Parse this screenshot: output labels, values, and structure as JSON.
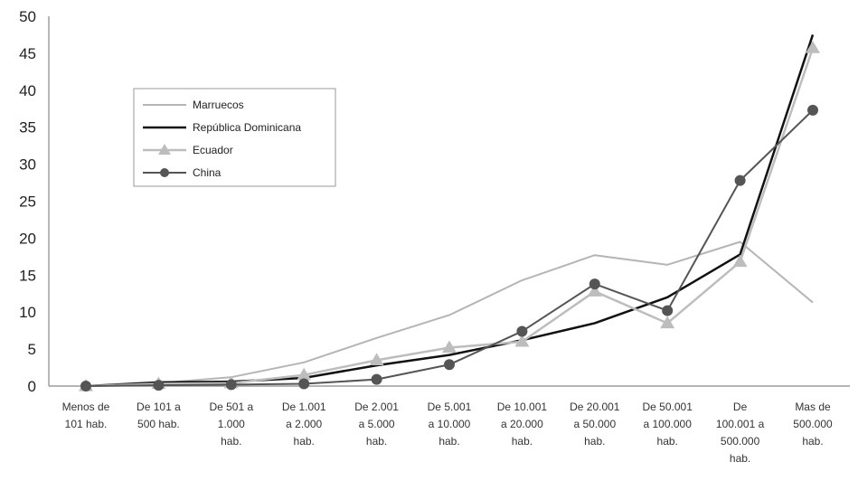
{
  "chart_data": {
    "type": "line",
    "ylim": [
      0,
      50
    ],
    "yticks": [
      "0",
      "5",
      "10",
      "15",
      "20",
      "25",
      "30",
      "35",
      "40",
      "45",
      "50"
    ],
    "grid": false,
    "legend_position": "upper-left",
    "categories": [
      [
        "Menos de",
        "101 hab."
      ],
      [
        "De 101 a",
        "500 hab."
      ],
      [
        "De 501 a",
        "1.000",
        "hab."
      ],
      [
        "De 1.001",
        "a 2.000",
        "hab."
      ],
      [
        "De 2.001",
        "a 5.000",
        "hab."
      ],
      [
        "De 5.001",
        "a 10.000",
        "hab."
      ],
      [
        "De 10.001",
        "a 20.000",
        "hab."
      ],
      [
        "De 20.001",
        "a 50.000",
        "hab."
      ],
      [
        "De 50.001",
        "a 100.000",
        "hab."
      ],
      [
        "De",
        "100.001 a",
        "500.000",
        "hab."
      ],
      [
        "Mas de",
        "500.000",
        "hab."
      ]
    ],
    "series": [
      {
        "name": "Marruecos",
        "color": "#b5b5b5",
        "marker": "none",
        "width": 2,
        "values": [
          0,
          0.4,
          1.2,
          3.2,
          6.5,
          9.6,
          14.3,
          17.7,
          16.4,
          19.5,
          11.3
        ]
      },
      {
        "name": "República Dominicana",
        "color": "#111111",
        "marker": "none",
        "width": 2.5,
        "values": [
          0,
          0.5,
          0.6,
          1.1,
          2.8,
          4.2,
          6.2,
          8.5,
          12.0,
          17.8,
          47.5
        ]
      },
      {
        "name": "Ecuador",
        "color": "#bdbdbd",
        "marker": "triangle",
        "width": 2.5,
        "values": [
          0,
          0.3,
          0.4,
          1.5,
          3.5,
          5.2,
          6.0,
          12.8,
          8.5,
          16.8,
          45.7
        ]
      },
      {
        "name": "China",
        "color": "#555555",
        "marker": "circle",
        "width": 2,
        "values": [
          0,
          0.1,
          0.2,
          0.3,
          0.9,
          2.9,
          7.4,
          13.8,
          10.2,
          27.8,
          37.3
        ]
      }
    ]
  }
}
